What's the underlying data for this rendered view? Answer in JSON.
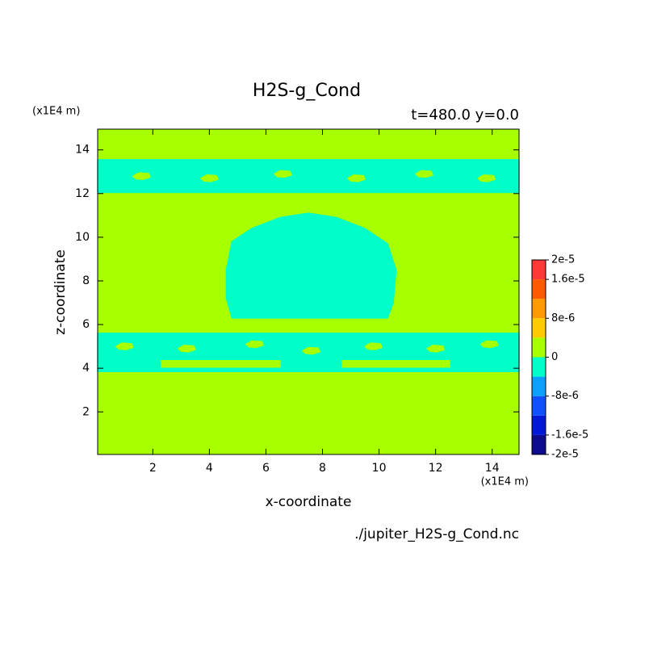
{
  "chart_data": {
    "type": "contour",
    "title": "H2S-g_Cond",
    "subtitle": "t=480.0 y=0.0",
    "x_label": "x-coordinate",
    "y_label": "z-coordinate",
    "x_unit": "(x1E4 m)",
    "y_unit": "(x1E4 m)",
    "source": "./jupiter_H2S-g_Cond.nc",
    "xlim": [
      0.05,
      14.95
    ],
    "ylim": [
      0.05,
      14.95
    ],
    "xticks": [
      2,
      4,
      6,
      8,
      10,
      12,
      14
    ],
    "yticks": [
      2,
      4,
      6,
      8,
      10,
      12,
      14
    ],
    "levels": [
      -2e-05,
      -1.6e-05,
      -1.2e-05,
      -8e-06,
      -4e-06,
      0,
      4e-06,
      8e-06,
      1.2e-05,
      1.6e-05,
      2e-05
    ],
    "colors": [
      "#0c0c8c",
      "#0018d8",
      "#1050ff",
      "#0aa0ff",
      "#00ffc8",
      "#a8ff00",
      "#ffcc00",
      "#ff9a00",
      "#ff5a00",
      "#ff3838"
    ],
    "colorbar_ticks": [
      {
        "value": 2e-05,
        "label": "2e-5"
      },
      {
        "value": 1.6e-05,
        "label": "1.6e-5"
      },
      {
        "value": 8e-06,
        "label": "8e-6"
      },
      0,
      {
        "value": -8e-06,
        "label": "-8e-6"
      },
      {
        "value": -1.6e-05,
        "label": "-1.6e-5"
      },
      {
        "value": -2e-05,
        "label": "-2e-5"
      }
    ],
    "background_value": 2e-06,
    "regions": [
      {
        "value": -2e-06,
        "x": [
          0.05,
          14.95,
          14.95,
          0.05
        ],
        "y": [
          12.05,
          12.05,
          13.55,
          13.55
        ]
      },
      {
        "value": -2e-06,
        "x": [
          0.05,
          14.95,
          14.95,
          0.05
        ],
        "y": [
          3.85,
          3.85,
          5.6,
          5.6
        ]
      },
      {
        "value": -2e-06,
        "x": [
          4.8,
          10.3,
          10.5,
          10.6,
          10.3,
          9.5,
          8.5,
          7.5,
          6.5,
          5.5,
          4.8,
          4.6,
          4.6
        ],
        "y": [
          6.3,
          6.3,
          7.0,
          8.5,
          9.7,
          10.4,
          10.9,
          11.1,
          10.9,
          10.4,
          9.8,
          8.5,
          7.2
        ]
      },
      {
        "value": 2e-06,
        "x": [
          2.3,
          6.5,
          6.5,
          2.3
        ],
        "y": [
          4.05,
          4.05,
          4.35,
          4.35
        ]
      },
      {
        "value": 2e-06,
        "x": [
          8.7,
          12.5,
          12.5,
          8.7
        ],
        "y": [
          4.05,
          4.05,
          4.35,
          4.35
        ]
      },
      {
        "value": 2e-06,
        "x": [
          0.7,
          0.9,
          1.25,
          1.3,
          1.05,
          0.8
        ],
        "y": [
          5.0,
          5.15,
          5.12,
          4.95,
          4.85,
          4.88
        ]
      },
      {
        "value": 2e-06,
        "x": [
          2.9,
          3.1,
          3.45,
          3.5,
          3.25,
          3.0
        ],
        "y": [
          4.9,
          5.05,
          5.02,
          4.85,
          4.75,
          4.78
        ]
      },
      {
        "value": 2e-06,
        "x": [
          5.3,
          5.5,
          5.85,
          5.9,
          5.65,
          5.4
        ],
        "y": [
          5.1,
          5.25,
          5.22,
          5.05,
          4.95,
          4.98
        ]
      },
      {
        "value": 2e-06,
        "x": [
          7.3,
          7.5,
          7.85,
          7.9,
          7.65,
          7.4
        ],
        "y": [
          4.8,
          4.95,
          4.92,
          4.75,
          4.65,
          4.68
        ]
      },
      {
        "value": 2e-06,
        "x": [
          9.5,
          9.7,
          10.05,
          10.1,
          9.85,
          9.6
        ],
        "y": [
          5.0,
          5.15,
          5.12,
          4.95,
          4.85,
          4.88
        ]
      },
      {
        "value": 2e-06,
        "x": [
          11.7,
          11.9,
          12.25,
          12.3,
          12.05,
          11.8
        ],
        "y": [
          4.9,
          5.05,
          5.02,
          4.85,
          4.75,
          4.78
        ]
      },
      {
        "value": 2e-06,
        "x": [
          13.6,
          13.8,
          14.15,
          14.2,
          13.95,
          13.7
        ],
        "y": [
          5.1,
          5.25,
          5.22,
          5.05,
          4.95,
          4.98
        ]
      },
      {
        "value": 2e-06,
        "x": [
          1.3,
          1.5,
          1.85,
          1.9,
          1.65,
          1.4
        ],
        "y": [
          12.8,
          12.95,
          12.92,
          12.75,
          12.65,
          12.68
        ]
      },
      {
        "value": 2e-06,
        "x": [
          3.7,
          3.9,
          4.25,
          4.3,
          4.05,
          3.8
        ],
        "y": [
          12.7,
          12.85,
          12.82,
          12.65,
          12.55,
          12.58
        ]
      },
      {
        "value": 2e-06,
        "x": [
          6.3,
          6.5,
          6.85,
          6.9,
          6.65,
          6.4
        ],
        "y": [
          12.9,
          13.05,
          13.02,
          12.85,
          12.75,
          12.78
        ]
      },
      {
        "value": 2e-06,
        "x": [
          8.9,
          9.1,
          9.45,
          9.5,
          9.25,
          9.0
        ],
        "y": [
          12.7,
          12.85,
          12.82,
          12.65,
          12.55,
          12.58
        ]
      },
      {
        "value": 2e-06,
        "x": [
          11.3,
          11.5,
          11.85,
          11.9,
          11.65,
          11.4
        ],
        "y": [
          12.9,
          13.05,
          13.02,
          12.85,
          12.75,
          12.78
        ]
      },
      {
        "value": 2e-06,
        "x": [
          13.5,
          13.7,
          14.05,
          14.1,
          13.85,
          13.6
        ],
        "y": [
          12.7,
          12.85,
          12.82,
          12.65,
          12.55,
          12.58
        ]
      }
    ]
  }
}
